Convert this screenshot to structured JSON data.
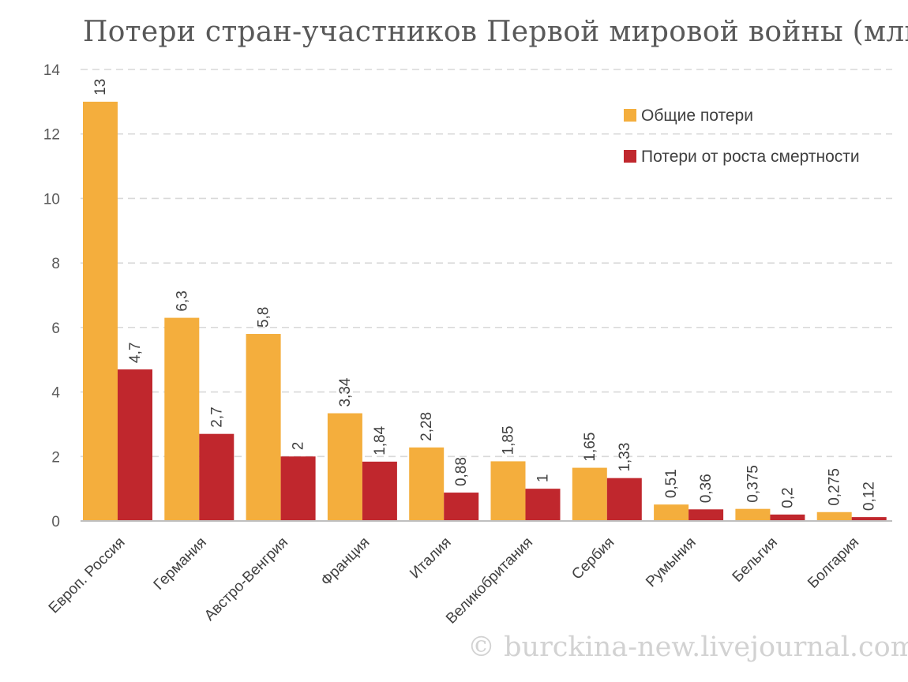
{
  "chart_data": {
    "type": "bar",
    "title": "Потери стран-участников Первой мировой войны (млн.)",
    "categories": [
      "Европ. Россия",
      "Германия",
      "Австро-Венгрия",
      "Франция",
      "Италия",
      "Великобритания",
      "Сербия",
      "Румыния",
      "Бельгия",
      "Болгария"
    ],
    "series": [
      {
        "name": "Общие потери",
        "color": "#F4AE3D",
        "values": [
          13,
          6.3,
          5.8,
          3.34,
          2.28,
          1.85,
          1.65,
          0.51,
          0.375,
          0.275
        ],
        "labels": [
          "13",
          "6,3",
          "5,8",
          "3,34",
          "2,28",
          "1,85",
          "1,65",
          "0,51",
          "0,375",
          "0,275"
        ]
      },
      {
        "name": "Потери от роста смертности",
        "color": "#C0272D",
        "values": [
          4.7,
          2.7,
          2,
          1.84,
          0.88,
          1,
          1.33,
          0.36,
          0.2,
          0.12
        ],
        "labels": [
          "4,7",
          "2,7",
          "2",
          "1,84",
          "0,88",
          "1",
          "1,33",
          "0,36",
          "0,2",
          "0,12"
        ]
      }
    ],
    "ylim": [
      0,
      14
    ],
    "yticks": [
      0,
      2,
      4,
      6,
      8,
      10,
      12,
      14
    ],
    "grid": true,
    "legend": "top-right"
  },
  "watermark": "© burckina-new.livejournal.com"
}
